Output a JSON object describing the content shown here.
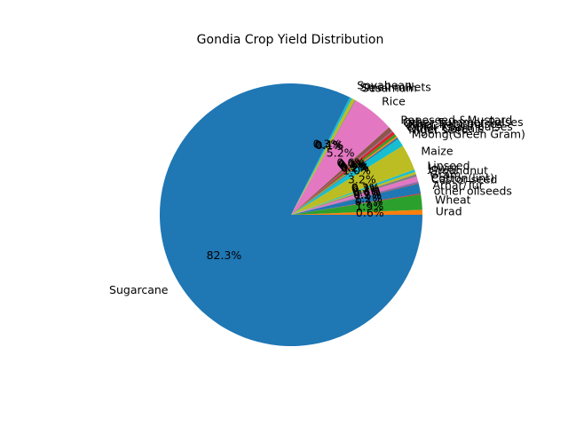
{
  "chart_data": {
    "type": "pie",
    "title": "Gondia Crop Yield Distribution",
    "start_angle_deg": 0,
    "direction": "counterclockwise",
    "labels": [
      "Urad",
      "Wheat",
      "other oilseeds",
      "Arhar/Tur",
      "Castor seed",
      "Cotton(lint)",
      "Gram",
      "Groundnut",
      "Jowar",
      "Linseed",
      "Maize",
      "Moong(Green Gram)",
      "Niger seed",
      "Other Cereals",
      "Other Kharif pulses",
      "Other Rabi pulses",
      "Other Summer Pulses",
      "Rapeseed &Mustard",
      "Rice",
      "Sesamum",
      "Small millets",
      "Soyabean",
      "Sugarcane"
    ],
    "values": [
      0.6,
      1.9,
      0.1,
      1.2,
      0.1,
      0.2,
      0.6,
      0.3,
      0.3,
      0.3,
      3.2,
      1.0,
      0.2,
      0.2,
      0.3,
      0.4,
      0.1,
      0.6,
      5.2,
      0.1,
      0.4,
      0.3,
      82.3
    ],
    "percent_labels": [
      "0.6%",
      "1.9%",
      "0.1%",
      "1.2%",
      "0.1%",
      "0.2%",
      "0.6%",
      "0.3%",
      "0.3%",
      "0.3%",
      "3.2%",
      "1.0%",
      "0.2%",
      "0.2%",
      "0.3%",
      "0.4%",
      "0.1%",
      "0.6%",
      "5.2%",
      "0.1%",
      "0.4%",
      "0.3%",
      "82.3%"
    ],
    "colors": [
      "#ff7f0e",
      "#2ca02c",
      "#d62728",
      "#1f77b4",
      "#8c564b",
      "#9467bd",
      "#e377c2",
      "#7f7f7f",
      "#bcbd22",
      "#17becf",
      "#bcbd22",
      "#17becf",
      "#1f77b4",
      "#ff7f0e",
      "#2ca02c",
      "#d62728",
      "#9467bd",
      "#8c564b",
      "#e377c2",
      "#7f7f7f",
      "#bcbd22",
      "#17becf",
      "#1f77b4"
    ]
  }
}
